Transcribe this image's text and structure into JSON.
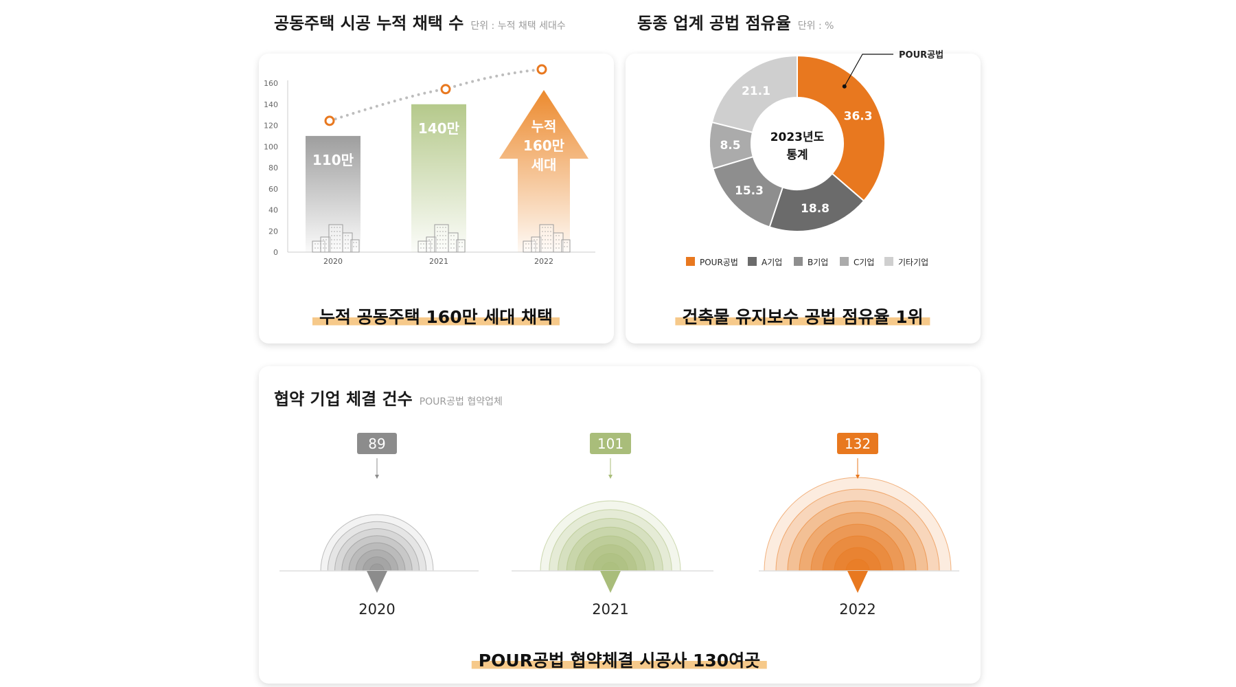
{
  "titles": {
    "adoption": "공동주택 시공 누적 채택 수",
    "adoption_unit": "단위 : 누적 채택 세대수",
    "share": "동종 업계 공법 점유율",
    "share_unit": "단위 : %",
    "partners": "협약 기업 체결 건수",
    "partners_unit": "POUR공법 협약업체"
  },
  "highlights": {
    "adoption": "누적 공동주택 160만 세대 채택",
    "share": "건축물 유지보수 공법 점유율 1위",
    "partners": "POUR공법 협약체결 시공사 130여곳"
  },
  "chart_data": [
    {
      "type": "bar",
      "categories": [
        "2020",
        "2021",
        "2022"
      ],
      "values": [
        110,
        140,
        160
      ],
      "data_labels": [
        "110만",
        "140만",
        "누적\n160만\n세대"
      ],
      "yticks": [
        "0",
        "20",
        "40",
        "60",
        "80",
        "100",
        "120",
        "140",
        "160"
      ],
      "ylim": [
        0,
        160
      ],
      "colors": [
        "#9e9e9e",
        "#b5c98b",
        "#ec8a2e"
      ]
    },
    {
      "type": "pie",
      "center_label": "2023년도\n통계",
      "callout": "POUR공법",
      "slices": [
        {
          "name": "POUR공법",
          "value": 36.3,
          "color": "#e8781f"
        },
        {
          "name": "A기업",
          "value": 18.8,
          "color": "#6b6b6b"
        },
        {
          "name": "B기업",
          "value": 15.3,
          "color": "#8e8e8e"
        },
        {
          "name": "C기업",
          "value": 8.5,
          "color": "#ababab"
        },
        {
          "name": "기타기업",
          "value": 21.1,
          "color": "#cfcfcf"
        }
      ],
      "legend": "bottom"
    },
    {
      "type": "bar",
      "categories": [
        "2020",
        "2021",
        "2022"
      ],
      "values": [
        89,
        101,
        132
      ],
      "colors": [
        "#8c8c8c",
        "#a9bd7a",
        "#e8781f"
      ]
    }
  ]
}
